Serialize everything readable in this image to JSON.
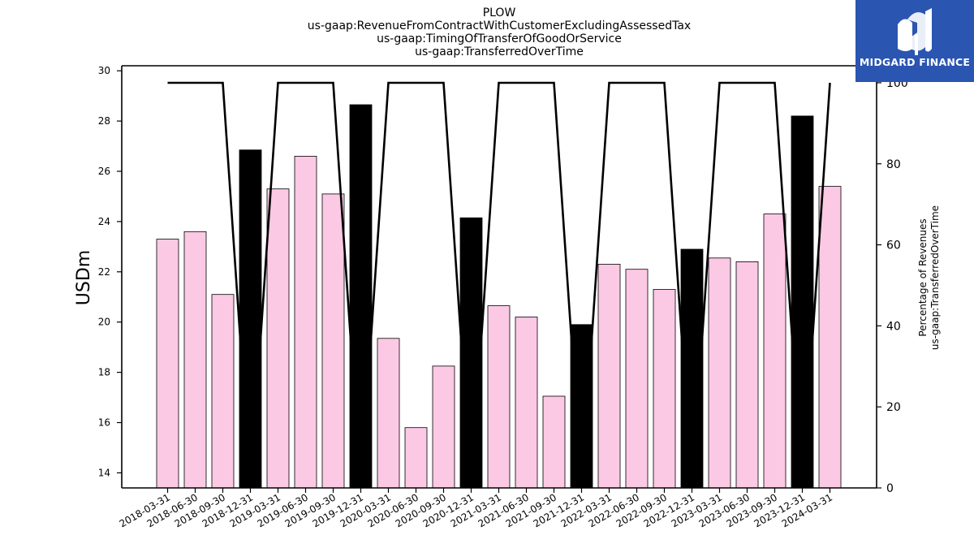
{
  "chart_data": {
    "type": "bar",
    "title_lines": [
      "PLOW",
      "us-gaap:RevenueFromContractWithCustomerExcludingAssessedTax",
      "us-gaap:TimingOfTransferOfGoodOrService",
      "us-gaap:TransferredOverTime"
    ],
    "ylabel": "USDm",
    "y2label_lines": [
      "Percentage of Revenues",
      "us-gaap:TransferredOverTime"
    ],
    "ylim": [
      13.4,
      30.2
    ],
    "y2lim": [
      0,
      104.2
    ],
    "yticks": [
      14,
      16,
      18,
      20,
      22,
      24,
      26,
      28,
      30
    ],
    "y2ticks": [
      0,
      20,
      40,
      60,
      80,
      100
    ],
    "categories": [
      "2018-03-31",
      "2018-06-30",
      "2018-09-30",
      "2018-12-31",
      "2019-03-31",
      "2019-06-30",
      "2019-09-30",
      "2019-12-31",
      "2020-03-31",
      "2020-06-30",
      "2020-09-30",
      "2020-12-31",
      "2021-03-31",
      "2021-06-30",
      "2021-09-30",
      "2021-12-31",
      "2022-03-31",
      "2022-06-30",
      "2022-09-30",
      "2022-12-31",
      "2023-03-31",
      "2023-06-30",
      "2023-09-30",
      "2023-12-31",
      "2024-03-31"
    ],
    "series": [
      {
        "values": [
          23.3,
          23.6,
          21.1,
          26.85,
          25.3,
          26.6,
          25.1,
          28.65,
          19.35,
          15.8,
          18.25,
          24.15,
          20.65,
          20.2,
          17.05,
          19.9,
          22.3,
          22.1,
          21.3,
          22.9,
          22.55,
          22.4,
          24.3,
          28.2,
          25.4
        ],
        "bar_colors": [
          "#fbc9e4",
          "#fbc9e4",
          "#fbc9e4",
          "#000000",
          "#fbc9e4",
          "#fbc9e4",
          "#fbc9e4",
          "#000000",
          "#fbc9e4",
          "#fbc9e4",
          "#fbc9e4",
          "#000000",
          "#fbc9e4",
          "#fbc9e4",
          "#fbc9e4",
          "#000000",
          "#fbc9e4",
          "#fbc9e4",
          "#fbc9e4",
          "#000000",
          "#fbc9e4",
          "#fbc9e4",
          "#fbc9e4",
          "#000000",
          "#fbc9e4"
        ]
      },
      {
        "axis": "right",
        "type": "line",
        "values": [
          100,
          100,
          100,
          0,
          100,
          100,
          100,
          0,
          100,
          100,
          100,
          0,
          100,
          100,
          100,
          0,
          100,
          100,
          100,
          0,
          100,
          100,
          100,
          0,
          100
        ],
        "color": "#000000"
      }
    ],
    "grid": false
  },
  "logo": {
    "text": "MIDGARD FINANCE",
    "background": "#2a55b0"
  }
}
